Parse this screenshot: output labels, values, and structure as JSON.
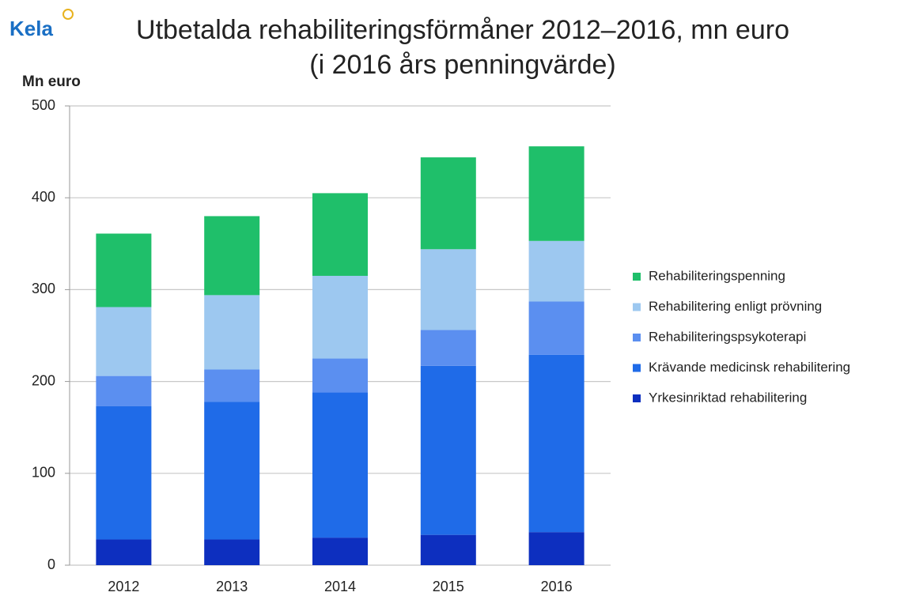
{
  "chart_data": {
    "type": "stacked_bar",
    "logo": "Kela",
    "title": "Utbetalda rehabiliteringsförmåner 2012–2016, mn euro",
    "subtitle": "(i 2016 års penningvärde)",
    "y_label": "Mn euro",
    "categories": [
      "2012",
      "2013",
      "2014",
      "2015",
      "2016"
    ],
    "series": [
      {
        "name": "Yrkesinriktad rehabilitering",
        "color": "#0d2fbf",
        "values": [
          28,
          28,
          30,
          33,
          36
        ]
      },
      {
        "name": "Krävande medicinsk rehabilitering",
        "color": "#1f6be8",
        "values": [
          145,
          150,
          158,
          184,
          193
        ]
      },
      {
        "name": "Rehabiliteringspsykoterapi",
        "color": "#5b8ff0",
        "values": [
          33,
          35,
          37,
          39,
          58
        ]
      },
      {
        "name": "Rehabilitering enligt prövning",
        "color": "#9dc8f0",
        "values": [
          75,
          81,
          90,
          88,
          66
        ]
      },
      {
        "name": "Rehabiliteringspenning",
        "color": "#1fbf6a",
        "values": [
          80,
          86,
          90,
          100,
          103
        ]
      }
    ],
    "ylim": [
      0,
      500
    ],
    "yticks": [
      0,
      100,
      200,
      300,
      400,
      500
    ],
    "grid": true,
    "legend": "right"
  }
}
